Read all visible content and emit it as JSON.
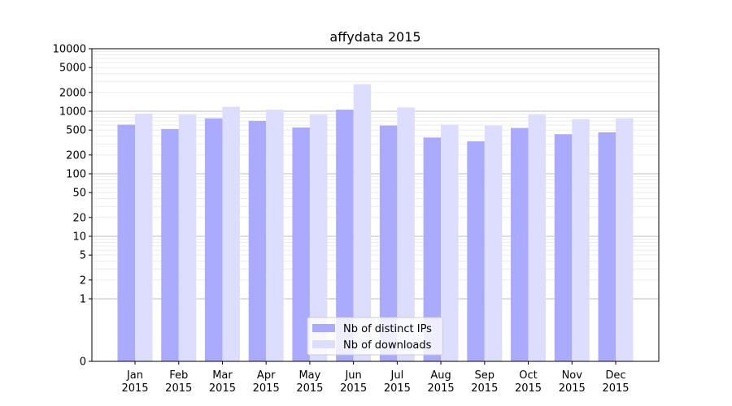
{
  "chart_data": {
    "type": "bar",
    "title": "affydata 2015",
    "xlabel": "",
    "ylabel": "",
    "y_scale": "symlog",
    "ylim": [
      0,
      10000
    ],
    "y_ticks": [
      0,
      1,
      2,
      5,
      10,
      20,
      50,
      100,
      200,
      500,
      1000,
      2000,
      5000,
      10000
    ],
    "y_tick_labels": [
      "0",
      "1",
      "2",
      "5",
      "10",
      "20",
      "50",
      "100",
      "200",
      "500",
      "1000",
      "2000",
      "5000",
      "10000"
    ],
    "grid": true,
    "legend_position": "bottom-center",
    "categories": [
      [
        "Jan",
        "2015"
      ],
      [
        "Feb",
        "2015"
      ],
      [
        "Mar",
        "2015"
      ],
      [
        "Apr",
        "2015"
      ],
      [
        "May",
        "2015"
      ],
      [
        "Jun",
        "2015"
      ],
      [
        "Jul",
        "2015"
      ],
      [
        "Aug",
        "2015"
      ],
      [
        "Sep",
        "2015"
      ],
      [
        "Oct",
        "2015"
      ],
      [
        "Nov",
        "2015"
      ],
      [
        "Dec",
        "2015"
      ]
    ],
    "series": [
      {
        "name": "Nb of distinct IPs",
        "color": "#aaaaff",
        "values": [
          610,
          520,
          770,
          700,
          550,
          1060,
          590,
          380,
          330,
          540,
          430,
          460
        ]
      },
      {
        "name": "Nb of downloads",
        "color": "#ddddff",
        "values": [
          920,
          880,
          1180,
          1060,
          880,
          2700,
          1150,
          610,
          590,
          880,
          750,
          770
        ]
      }
    ]
  }
}
